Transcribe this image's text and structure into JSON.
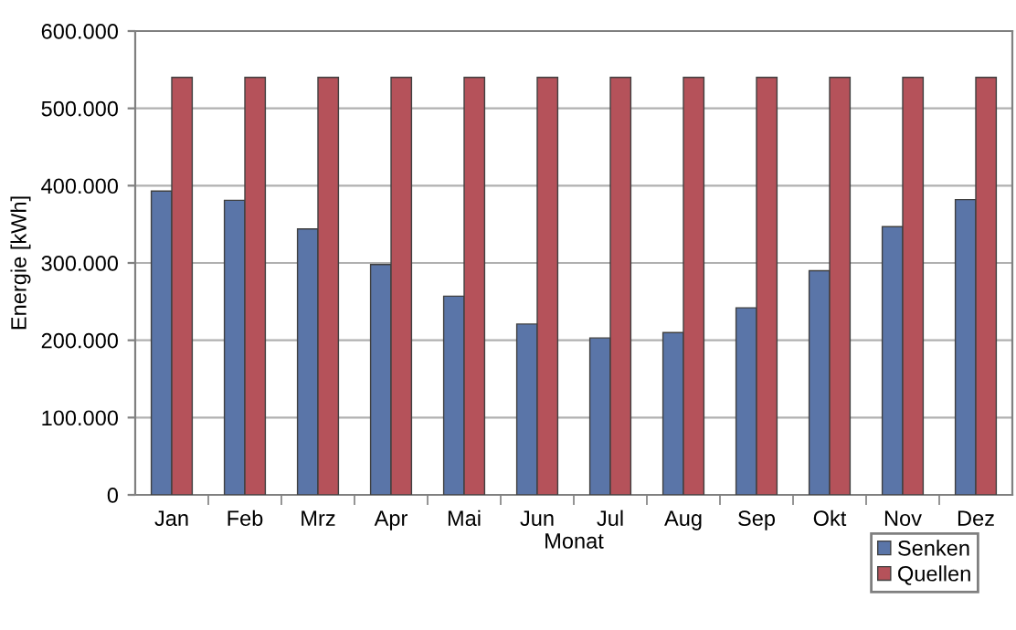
{
  "chart_data": {
    "type": "bar",
    "xlabel": "Monat",
    "ylabel": "Energie [kWh]",
    "categories": [
      "Jan",
      "Feb",
      "Mrz",
      "Apr",
      "Mai",
      "Jun",
      "Jul",
      "Aug",
      "Sep",
      "Okt",
      "Nov",
      "Dez"
    ],
    "series": [
      {
        "name": "Senken",
        "color": "#5a75a8",
        "values": [
          393000,
          381000,
          344000,
          298000,
          257000,
          221000,
          203000,
          210000,
          242000,
          290000,
          347000,
          382000
        ]
      },
      {
        "name": "Quellen",
        "color": "#b5525a",
        "values": [
          540000,
          540000,
          540000,
          540000,
          540000,
          540000,
          540000,
          540000,
          540000,
          540000,
          540000,
          540000
        ]
      }
    ],
    "ylim": [
      0,
      600000
    ],
    "yticks": [
      {
        "value": 0,
        "label": "0"
      },
      {
        "value": 100000,
        "label": "100.000"
      },
      {
        "value": 200000,
        "label": "200.000"
      },
      {
        "value": 300000,
        "label": "300.000"
      },
      {
        "value": 400000,
        "label": "400.000"
      },
      {
        "value": 500000,
        "label": "500.000"
      },
      {
        "value": 600000,
        "label": "600.000"
      }
    ],
    "grid": "y",
    "legend": "bottom right"
  }
}
